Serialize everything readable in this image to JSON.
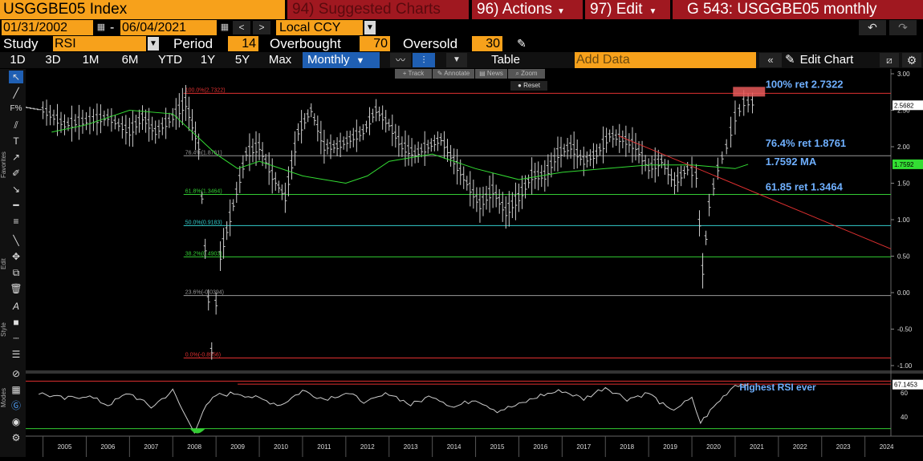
{
  "header": {
    "security": "USGGBE05 Index",
    "suggested": "94) Suggested Charts",
    "actions": "96) Actions",
    "edit": "97) Edit",
    "chart_title": "G 543: USGGBE05 monthly"
  },
  "range": {
    "start": "01/31/2002",
    "dash": "-",
    "end": "06/04/2021",
    "currency": "Local CCY"
  },
  "study": {
    "label": "Study",
    "value": "RSI",
    "period_label": "Period",
    "period": "14",
    "overbought_label": "Overbought",
    "overbought": "70",
    "oversold_label": "Oversold",
    "oversold": "30"
  },
  "toolbar": {
    "periods": [
      "1D",
      "3D",
      "1M",
      "6M",
      "YTD",
      "1Y",
      "5Y",
      "Max"
    ],
    "frequency": "Monthly",
    "table": "Table",
    "add_data": "Add Data",
    "edit_chart": "Edit Chart"
  },
  "mini_toolbar": {
    "track": "Track",
    "annotate": "Annotate",
    "news": "News",
    "zoom": "Zoom",
    "reset": "Reset"
  },
  "sidebar_labels": {
    "favorites": "Favorites",
    "edit": "Edit",
    "style": "Style",
    "modes": "Modes"
  },
  "annotations": {
    "ret100": "100% ret 2.7322",
    "ret764": "76.4% ret 1.8761",
    "ma": "1.7592 MA",
    "ret6185": "61.85 ret 1.3464",
    "rsi_note": "Highest RSI ever"
  },
  "fib_labels": [
    {
      "text": "100.0%(2.7322)",
      "value": 2.7322,
      "color": "#e03030"
    },
    {
      "text": "76.4%(1.8761)",
      "value": 1.8761,
      "color": "#999999"
    },
    {
      "text": "61.8%(1.3464)",
      "value": 1.3464,
      "color": "#33cc33"
    },
    {
      "text": "50.0%(0.9183)",
      "value": 0.9183,
      "color": "#33cccc"
    },
    {
      "text": "38.2%(0.4903)",
      "value": 0.4903,
      "color": "#33cc33"
    },
    {
      "text": "23.6%(-0.0394)",
      "value": -0.0394,
      "color": "#999999"
    },
    {
      "text": "0.0%(-0.8956)",
      "value": -0.8956,
      "color": "#e03030"
    }
  ],
  "last_price": "2.5682",
  "ma_last": "1.7592",
  "rsi_last": "67.1453",
  "chart_data": {
    "type": "line",
    "x_ticks": [
      "2005",
      "2006",
      "2007",
      "2008",
      "2009",
      "2010",
      "2011",
      "2012",
      "2013",
      "2014",
      "2015",
      "2016",
      "2017",
      "2018",
      "2019",
      "2020",
      "2021",
      "2022",
      "2023",
      "2024"
    ],
    "y_ticks": [
      "3.00",
      "2.50",
      "2.00",
      "1.50",
      "1.00",
      "0.50",
      "0.00",
      "-0.50",
      "-1.00"
    ],
    "ylim": [
      -1.0,
      3.0
    ],
    "rsi_ticks": [
      "60",
      "40"
    ],
    "rsi_ylim": [
      25,
      75
    ],
    "series": [
      {
        "name": "USGGBE05 Index",
        "x": [
          2002.1,
          2003,
          2004,
          2005,
          2005.5,
          2006,
          2006.5,
          2007,
          2007.3,
          2007.6,
          2008,
          2008.3,
          2008.6,
          2008.9,
          2009.1,
          2009.4,
          2009.7,
          2010,
          2010.3,
          2010.6,
          2010.9,
          2011.2,
          2011.5,
          2011.8,
          2012.1,
          2012.4,
          2012.7,
          2013,
          2013.3,
          2013.6,
          2013.9,
          2014.2,
          2014.5,
          2014.8,
          2015.1,
          2015.4,
          2015.7,
          2016,
          2016.3,
          2016.6,
          2016.9,
          2017.2,
          2017.5,
          2017.8,
          2018.1,
          2018.4,
          2018.7,
          2019,
          2019.3,
          2019.6,
          2019.9,
          2020.1,
          2020.25,
          2020.4,
          2020.6,
          2020.8,
          2021,
          2021.2,
          2021.4
        ],
        "values": [
          2.8,
          2.7,
          2.6,
          2.5,
          2.3,
          2.35,
          2.4,
          2.2,
          2.4,
          2.2,
          2.4,
          2.6,
          2.0,
          -0.8,
          0.5,
          1.2,
          1.9,
          2.0,
          1.6,
          1.3,
          2.2,
          2.5,
          2.0,
          2.0,
          2.1,
          2.2,
          2.5,
          2.3,
          2.0,
          1.9,
          2.0,
          2.1,
          1.8,
          1.5,
          1.2,
          1.4,
          1.1,
          1.3,
          1.6,
          1.6,
          1.9,
          2.0,
          1.8,
          1.9,
          2.15,
          2.1,
          2.0,
          1.7,
          1.8,
          1.5,
          1.7,
          1.6,
          0.3,
          1.2,
          1.7,
          2.0,
          2.4,
          2.6,
          2.6
        ]
      },
      {
        "name": "MA",
        "x": [
          2005.2,
          2006,
          2007,
          2008,
          2009,
          2009.5,
          2010,
          2011,
          2011.5,
          2012,
          2012.5,
          2013,
          2014,
          2015,
          2016,
          2017,
          2018,
          2019,
          2020,
          2021,
          2021.3
        ],
        "values": [
          2.2,
          2.3,
          2.5,
          2.45,
          1.9,
          1.7,
          1.8,
          1.6,
          1.55,
          1.5,
          1.6,
          1.8,
          1.9,
          1.7,
          1.55,
          1.65,
          1.7,
          1.75,
          1.75,
          1.7,
          1.7592
        ]
      },
      {
        "name": "RSI",
        "x": [
          2004.9,
          2005.5,
          2006,
          2006.5,
          2007,
          2007.5,
          2008,
          2008.3,
          2008.5,
          2008.7,
          2009,
          2009.5,
          2010,
          2010.5,
          2011,
          2011.5,
          2012,
          2012.5,
          2013,
          2013.5,
          2014,
          2014.5,
          2015,
          2015.5,
          2016,
          2016.5,
          2017,
          2017.5,
          2018,
          2018.5,
          2019,
          2019.5,
          2020,
          2020.2,
          2020.5,
          2020.8,
          2021,
          2021.3
        ],
        "values": [
          60,
          55,
          58,
          50,
          60,
          48,
          62,
          40,
          28,
          45,
          58,
          60,
          55,
          50,
          62,
          55,
          60,
          52,
          60,
          50,
          58,
          48,
          55,
          45,
          50,
          58,
          62,
          55,
          65,
          55,
          60,
          45,
          55,
          35,
          48,
          60,
          67,
          67.1453
        ]
      }
    ]
  }
}
